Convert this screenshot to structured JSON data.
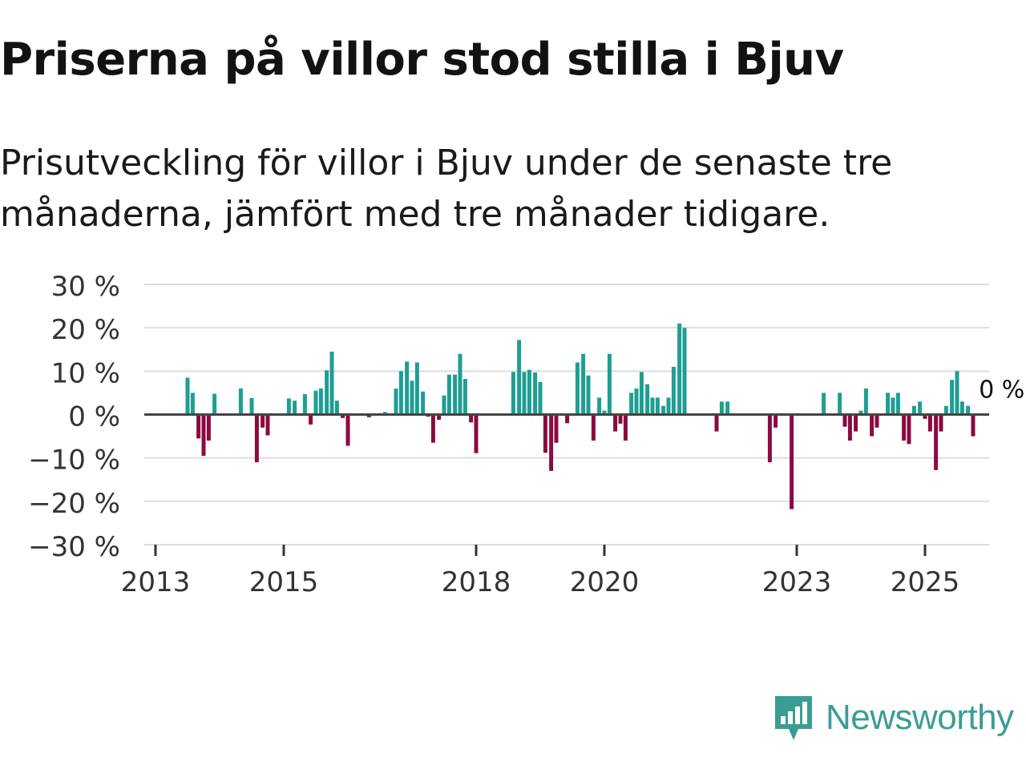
{
  "header": {
    "title": "Priserna på villor stod stilla i Bjuv",
    "subtitle": "Prisutveckling för villor i Bjuv under de senaste tre månaderna, jämfört med tre månader tidigare."
  },
  "colors": {
    "positive": "#1e9e93",
    "negative": "#8c0a40",
    "grid": "#dddddd",
    "zero_line": "#444444",
    "brand": "#3a9d94"
  },
  "brand": {
    "name": "Newsworthy",
    "icon": "bar-chart-bubble-icon"
  },
  "chart_data": {
    "type": "bar",
    "title": "Priserna på villor stod stilla i Bjuv",
    "xlabel": "",
    "ylabel": "",
    "ylim": [
      -30,
      30
    ],
    "y_ticks": [
      30,
      20,
      10,
      0,
      -10,
      -20,
      -30
    ],
    "y_tick_labels": [
      "30 %",
      "20 %",
      "10 %",
      "0 %",
      "−10 %",
      "−20 %",
      "−30 %"
    ],
    "x_range": [
      2013.0,
      2026.5
    ],
    "x_ticks": [
      2013,
      2015,
      2018,
      2020,
      2023,
      2025
    ],
    "x_tick_labels": [
      "2013",
      "2015",
      "2018",
      "2020",
      "2023",
      "2025"
    ],
    "grid": true,
    "annotation": {
      "text": "0 %",
      "x": 2025.84,
      "y": 0
    },
    "bars": [
      {
        "x": 2013.5,
        "y": 8.5
      },
      {
        "x": 2013.58,
        "y": 5
      },
      {
        "x": 2013.67,
        "y": -5.5
      },
      {
        "x": 2013.75,
        "y": -9.5
      },
      {
        "x": 2013.83,
        "y": -6
      },
      {
        "x": 2013.92,
        "y": 4.8
      },
      {
        "x": 2014.33,
        "y": 6
      },
      {
        "x": 2014.5,
        "y": 3.8
      },
      {
        "x": 2014.58,
        "y": -11
      },
      {
        "x": 2014.67,
        "y": -3
      },
      {
        "x": 2014.75,
        "y": -4.8
      },
      {
        "x": 2015.08,
        "y": 3.7
      },
      {
        "x": 2015.17,
        "y": 3.2
      },
      {
        "x": 2015.33,
        "y": 4.7
      },
      {
        "x": 2015.42,
        "y": -2.3
      },
      {
        "x": 2015.5,
        "y": 5.5
      },
      {
        "x": 2015.58,
        "y": 6
      },
      {
        "x": 2015.67,
        "y": 10.2
      },
      {
        "x": 2015.75,
        "y": 14.5
      },
      {
        "x": 2015.83,
        "y": 3.2
      },
      {
        "x": 2015.92,
        "y": -0.8
      },
      {
        "x": 2016.0,
        "y": -7.2
      },
      {
        "x": 2016.33,
        "y": -0.6
      },
      {
        "x": 2016.58,
        "y": 0.6
      },
      {
        "x": 2016.75,
        "y": 6
      },
      {
        "x": 2016.83,
        "y": 10
      },
      {
        "x": 2016.92,
        "y": 12.2
      },
      {
        "x": 2017.0,
        "y": 7.8
      },
      {
        "x": 2017.08,
        "y": 12
      },
      {
        "x": 2017.17,
        "y": 5.3
      },
      {
        "x": 2017.25,
        "y": -0.5
      },
      {
        "x": 2017.33,
        "y": -6.5
      },
      {
        "x": 2017.42,
        "y": -1.2
      },
      {
        "x": 2017.5,
        "y": 4.4
      },
      {
        "x": 2017.58,
        "y": 9.2
      },
      {
        "x": 2017.67,
        "y": 9.2
      },
      {
        "x": 2017.75,
        "y": 14
      },
      {
        "x": 2017.83,
        "y": 8.2
      },
      {
        "x": 2017.92,
        "y": -1.8
      },
      {
        "x": 2018.0,
        "y": -8.9
      },
      {
        "x": 2018.58,
        "y": 9.8
      },
      {
        "x": 2018.67,
        "y": 17.2
      },
      {
        "x": 2018.75,
        "y": 9.8
      },
      {
        "x": 2018.83,
        "y": 10.3
      },
      {
        "x": 2018.92,
        "y": 9.7
      },
      {
        "x": 2019.0,
        "y": 7.5
      },
      {
        "x": 2019.08,
        "y": -8.8
      },
      {
        "x": 2019.17,
        "y": -13
      },
      {
        "x": 2019.25,
        "y": -6.5
      },
      {
        "x": 2019.42,
        "y": -2
      },
      {
        "x": 2019.58,
        "y": 12
      },
      {
        "x": 2019.67,
        "y": 14
      },
      {
        "x": 2019.75,
        "y": 9
      },
      {
        "x": 2019.83,
        "y": -6
      },
      {
        "x": 2019.92,
        "y": 3.9
      },
      {
        "x": 2020.0,
        "y": 0.9
      },
      {
        "x": 2020.08,
        "y": 14
      },
      {
        "x": 2020.17,
        "y": -3.9
      },
      {
        "x": 2020.25,
        "y": -2.1
      },
      {
        "x": 2020.33,
        "y": -6
      },
      {
        "x": 2020.42,
        "y": 5
      },
      {
        "x": 2020.5,
        "y": 6
      },
      {
        "x": 2020.58,
        "y": 9.8
      },
      {
        "x": 2020.67,
        "y": 7
      },
      {
        "x": 2020.75,
        "y": 3.9
      },
      {
        "x": 2020.83,
        "y": 3.9
      },
      {
        "x": 2020.92,
        "y": 2
      },
      {
        "x": 2021.0,
        "y": 3.9
      },
      {
        "x": 2021.08,
        "y": 11
      },
      {
        "x": 2021.17,
        "y": 21
      },
      {
        "x": 2021.25,
        "y": 20
      },
      {
        "x": 2021.75,
        "y": -3.9
      },
      {
        "x": 2021.83,
        "y": 3
      },
      {
        "x": 2021.92,
        "y": 3
      },
      {
        "x": 2022.58,
        "y": -11
      },
      {
        "x": 2022.67,
        "y": -3
      },
      {
        "x": 2022.92,
        "y": -21.8
      },
      {
        "x": 2023.42,
        "y": 5
      },
      {
        "x": 2023.67,
        "y": 5
      },
      {
        "x": 2023.75,
        "y": -2.8
      },
      {
        "x": 2023.83,
        "y": -6
      },
      {
        "x": 2023.92,
        "y": -3.9
      },
      {
        "x": 2024.0,
        "y": 0.9
      },
      {
        "x": 2024.08,
        "y": 6
      },
      {
        "x": 2024.17,
        "y": -5
      },
      {
        "x": 2024.25,
        "y": -3
      },
      {
        "x": 2024.42,
        "y": 5
      },
      {
        "x": 2024.5,
        "y": 3.9
      },
      {
        "x": 2024.58,
        "y": 5
      },
      {
        "x": 2024.67,
        "y": -6
      },
      {
        "x": 2024.75,
        "y": -6.8
      },
      {
        "x": 2024.83,
        "y": 2
      },
      {
        "x": 2024.92,
        "y": 3
      },
      {
        "x": 2025.0,
        "y": -1
      },
      {
        "x": 2025.08,
        "y": -3.9
      },
      {
        "x": 2025.17,
        "y": -12.8
      },
      {
        "x": 2025.25,
        "y": -3.9
      },
      {
        "x": 2025.33,
        "y": 2
      },
      {
        "x": 2025.42,
        "y": 8
      },
      {
        "x": 2025.5,
        "y": 10
      },
      {
        "x": 2025.58,
        "y": 3
      },
      {
        "x": 2025.67,
        "y": 2
      },
      {
        "x": 2025.75,
        "y": -5
      },
      {
        "x": 2025.84,
        "y": 0
      }
    ]
  }
}
